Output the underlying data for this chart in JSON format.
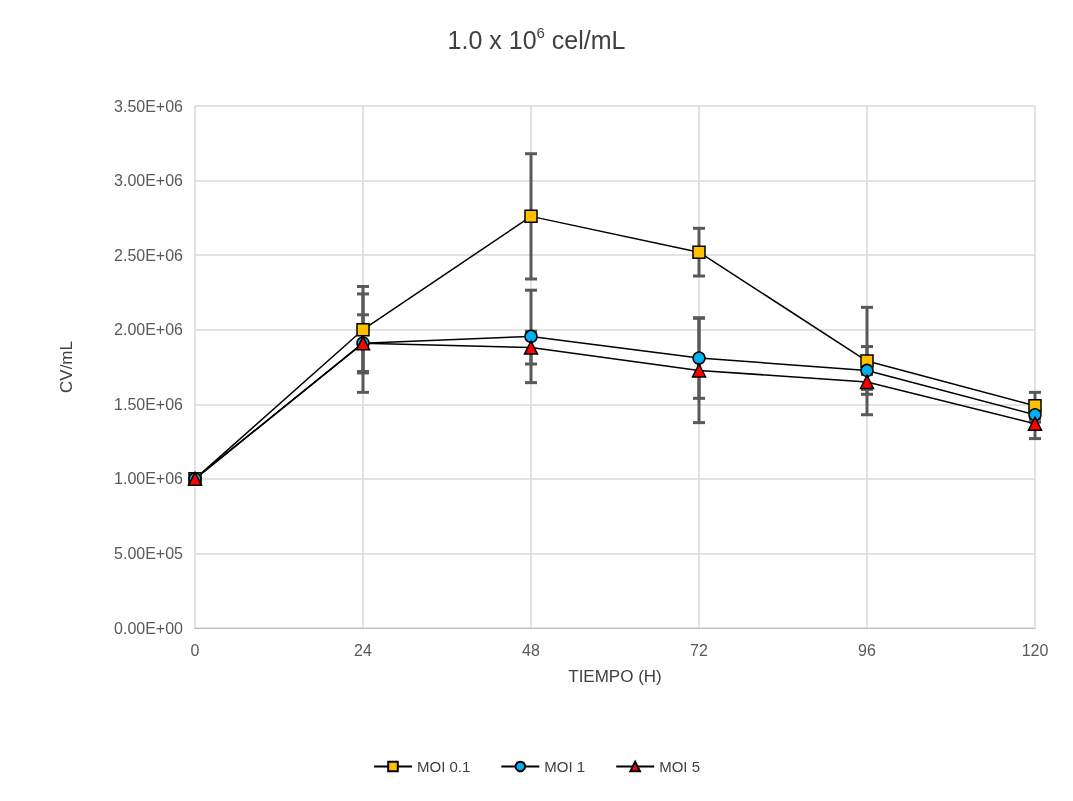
{
  "chart_data": {
    "type": "line",
    "title": "1.0 x 10$^{6}$ cel/mL",
    "xlabel": "TIEMPO (H)",
    "ylabel": "CV/mL",
    "x": [
      0,
      24,
      48,
      72,
      96,
      120
    ],
    "series": [
      {
        "name": "MOI 0.1",
        "color": "#ffc000",
        "marker": "square",
        "values": [
          1000000,
          2000000,
          2760000,
          2520000,
          1790000,
          1490000
        ],
        "errors": [
          null,
          290000,
          420000,
          160000,
          360000,
          90000
        ]
      },
      {
        "name": "MOI 1",
        "color": "#00b0f0",
        "marker": "circle",
        "values": [
          1000000,
          1910000,
          1955000,
          1810000,
          1727000,
          1430000
        ],
        "errors": [
          null,
          330000,
          310000,
          270000,
          160000,
          50000
        ]
      },
      {
        "name": "MOI 5",
        "color": "#ff0000",
        "marker": "triangle",
        "values": [
          1000000,
          1910000,
          1880000,
          1727000,
          1650000,
          1370000
        ],
        "errors": [
          null,
          190000,
          110000,
          350000,
          50000,
          100000
        ]
      }
    ],
    "xlim": [
      0,
      120
    ],
    "xticks": [
      0,
      24,
      48,
      72,
      96,
      120
    ],
    "ylim": [
      0,
      3500000
    ],
    "yticks": [
      {
        "value": 0,
        "label": "0.00E+00"
      },
      {
        "value": 500000,
        "label": "5.00E+05"
      },
      {
        "value": 1000000,
        "label": "1.00E+06"
      },
      {
        "value": 1500000,
        "label": "1.50E+06"
      },
      {
        "value": 2000000,
        "label": "2.00E+06"
      },
      {
        "value": 2500000,
        "label": "2.50E+06"
      },
      {
        "value": 3000000,
        "label": "3.00E+06"
      },
      {
        "value": 3500000,
        "label": "3.50E+06"
      }
    ],
    "grid": true,
    "legend": "bottom",
    "line_style": "solid"
  }
}
